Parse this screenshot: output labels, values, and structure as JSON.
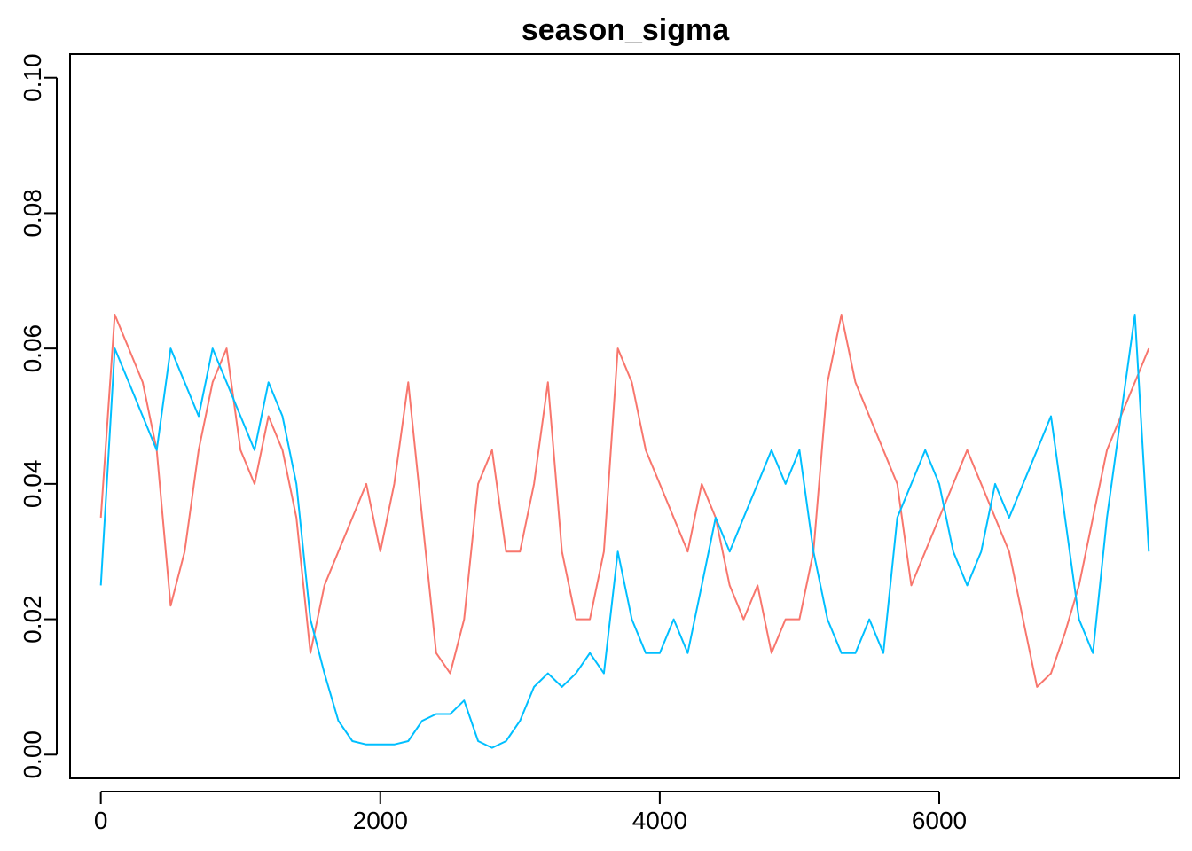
{
  "chart_data": {
    "type": "line",
    "title": "season_sigma",
    "xlabel": "",
    "ylabel": "",
    "xlim": [
      -220,
      7720
    ],
    "ylim": [
      -0.0035,
      0.1035
    ],
    "x_ticks": [
      0,
      2000,
      4000,
      6000
    ],
    "x_tick_labels": [
      "0",
      "2000",
      "4000",
      "6000"
    ],
    "y_ticks": [
      0.0,
      0.02,
      0.04,
      0.06,
      0.08,
      0.1
    ],
    "y_tick_labels": [
      "0.00",
      "0.02",
      "0.04",
      "0.06",
      "0.08",
      "0.10"
    ],
    "grid": false,
    "legend": "none",
    "series": [
      {
        "color": "#F8766D",
        "x": [
          0,
          100,
          200,
          300,
          400,
          500,
          600,
          700,
          800,
          900,
          1000,
          1100,
          1200,
          1300,
          1400,
          1500,
          1600,
          1700,
          1800,
          1900,
          2000,
          2100,
          2200,
          2300,
          2400,
          2500,
          2600,
          2700,
          2800,
          2900,
          3000,
          3100,
          3200,
          3300,
          3400,
          3500,
          3600,
          3700,
          3800,
          3900,
          4000,
          4100,
          4200,
          4300,
          4400,
          4500,
          4600,
          4700,
          4800,
          4900,
          5000,
          5100,
          5200,
          5300,
          5400,
          5500,
          5600,
          5700,
          5800,
          5900,
          6000,
          6100,
          6200,
          6300,
          6400,
          6500,
          6600,
          6700,
          6800,
          6900,
          7000,
          7100,
          7200,
          7300,
          7400,
          7500
        ],
        "y": [
          0.035,
          0.065,
          0.06,
          0.055,
          0.045,
          0.022,
          0.03,
          0.045,
          0.055,
          0.06,
          0.045,
          0.04,
          0.05,
          0.045,
          0.035,
          0.015,
          0.025,
          0.03,
          0.035,
          0.04,
          0.03,
          0.04,
          0.055,
          0.035,
          0.015,
          0.012,
          0.02,
          0.04,
          0.045,
          0.03,
          0.03,
          0.04,
          0.055,
          0.03,
          0.02,
          0.02,
          0.03,
          0.06,
          0.055,
          0.045,
          0.04,
          0.035,
          0.03,
          0.04,
          0.035,
          0.025,
          0.02,
          0.025,
          0.015,
          0.02,
          0.02,
          0.03,
          0.055,
          0.065,
          0.055,
          0.05,
          0.045,
          0.04,
          0.025,
          0.03,
          0.035,
          0.04,
          0.045,
          0.04,
          0.035,
          0.03,
          0.02,
          0.01,
          0.012,
          0.018,
          0.025,
          0.035,
          0.045,
          0.05,
          0.055,
          0.06
        ]
      },
      {
        "color": "#00BFFF",
        "x": [
          0,
          100,
          200,
          300,
          400,
          500,
          600,
          700,
          800,
          900,
          1000,
          1100,
          1200,
          1300,
          1400,
          1500,
          1600,
          1700,
          1800,
          1900,
          2000,
          2100,
          2200,
          2300,
          2400,
          2500,
          2600,
          2700,
          2800,
          2900,
          3000,
          3100,
          3200,
          3300,
          3400,
          3500,
          3600,
          3700,
          3800,
          3900,
          4000,
          4100,
          4200,
          4300,
          4400,
          4500,
          4600,
          4700,
          4800,
          4900,
          5000,
          5100,
          5200,
          5300,
          5400,
          5500,
          5600,
          5700,
          5800,
          5900,
          6000,
          6100,
          6200,
          6300,
          6400,
          6500,
          6600,
          6700,
          6800,
          6900,
          7000,
          7100,
          7200,
          7300,
          7400,
          7500
        ],
        "y": [
          0.025,
          0.06,
          0.055,
          0.05,
          0.045,
          0.06,
          0.055,
          0.05,
          0.06,
          0.055,
          0.05,
          0.045,
          0.055,
          0.05,
          0.04,
          0.02,
          0.012,
          0.005,
          0.002,
          0.0015,
          0.0015,
          0.0015,
          0.002,
          0.005,
          0.006,
          0.006,
          0.008,
          0.002,
          0.001,
          0.002,
          0.005,
          0.01,
          0.012,
          0.01,
          0.012,
          0.015,
          0.012,
          0.03,
          0.02,
          0.015,
          0.015,
          0.02,
          0.015,
          0.025,
          0.035,
          0.03,
          0.035,
          0.04,
          0.045,
          0.04,
          0.045,
          0.03,
          0.02,
          0.015,
          0.015,
          0.02,
          0.015,
          0.035,
          0.04,
          0.045,
          0.04,
          0.03,
          0.025,
          0.03,
          0.04,
          0.035,
          0.04,
          0.045,
          0.05,
          0.035,
          0.02,
          0.015,
          0.035,
          0.05,
          0.065,
          0.03
        ]
      }
    ]
  }
}
